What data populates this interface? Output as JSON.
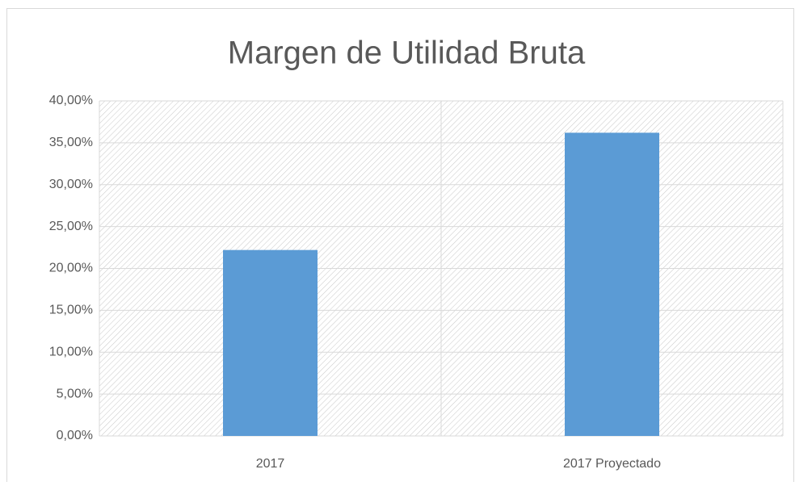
{
  "chart_data": {
    "type": "bar",
    "title": "Margen de Utilidad Bruta",
    "categories": [
      "2017",
      "2017 Proyectado"
    ],
    "values": [
      22.2,
      36.2
    ],
    "color": "#5b9bd5",
    "ylim": [
      0,
      40
    ],
    "yticks": [
      {
        "value": 0,
        "label": "0,00%"
      },
      {
        "value": 5,
        "label": "5,00%"
      },
      {
        "value": 10,
        "label": "10,00%"
      },
      {
        "value": 15,
        "label": "15,00%"
      },
      {
        "value": 20,
        "label": "20,00%"
      },
      {
        "value": 25,
        "label": "25,00%"
      },
      {
        "value": 30,
        "label": "30,00%"
      },
      {
        "value": 35,
        "label": "35,00%"
      },
      {
        "value": 40,
        "label": "40,00%"
      }
    ],
    "grid": true
  }
}
